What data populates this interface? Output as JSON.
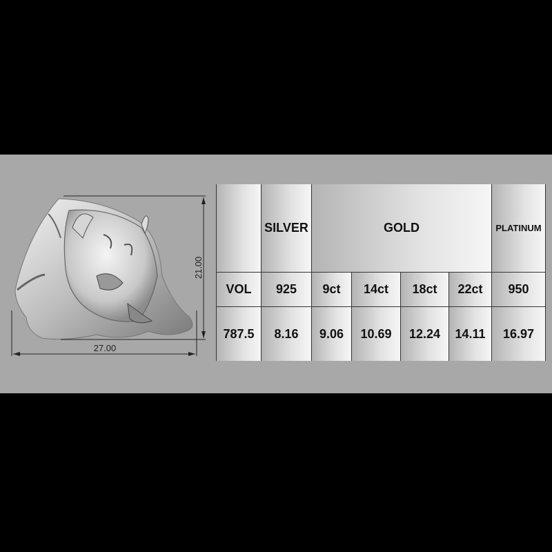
{
  "dimensions": {
    "width_label": "27.00",
    "height_label": "21.00"
  },
  "table": {
    "header": {
      "silver": "SILVER",
      "gold": "GOLD",
      "platinum": "PLATINUM"
    },
    "subheader": [
      "VOL",
      "925",
      "9ct",
      "14ct",
      "18ct",
      "22ct",
      "950"
    ],
    "values": [
      "787.5",
      "8.16",
      "9.06",
      "10.69",
      "12.24",
      "14.11",
      "16.97"
    ]
  },
  "colors": {
    "background": "#000000",
    "panel": "#a8a8a8",
    "text": "#111111"
  }
}
